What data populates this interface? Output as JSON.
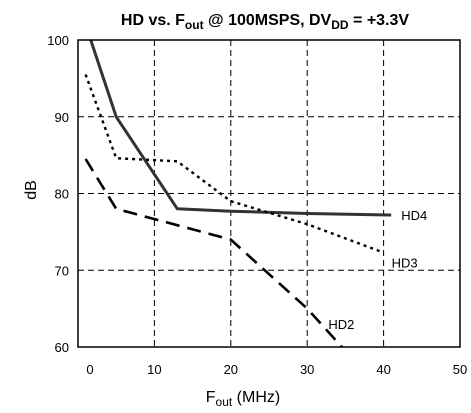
{
  "chart_data": {
    "type": "line",
    "title": {
      "prefix": "HD vs. F",
      "prefix_sub": "out",
      "middle": " @ 100MSPS, DV",
      "middle_sub": "DD",
      "suffix": " = +3.3V"
    },
    "xlabel": {
      "main": "F",
      "sub": "out",
      "rest": " (MHz)"
    },
    "ylabel": "dB",
    "xlim": [
      0,
      50
    ],
    "ylim": [
      60,
      100
    ],
    "x_ticks": [
      0,
      10,
      20,
      30,
      40,
      50
    ],
    "y_ticks": [
      60,
      70,
      80,
      90,
      100
    ],
    "grid": true,
    "series": [
      {
        "name": "HD4",
        "style": "solid",
        "color": "#333333",
        "points": [
          [
            1.5,
            100.5
          ],
          [
            5,
            90
          ],
          [
            13,
            78
          ],
          [
            20,
            77.7
          ],
          [
            30,
            77.4
          ],
          [
            41,
            77.2
          ]
        ]
      },
      {
        "name": "HD3",
        "style": "dotted",
        "color": "#000000",
        "points": [
          [
            1,
            95.5
          ],
          [
            5,
            84.6
          ],
          [
            13,
            84.2
          ],
          [
            20,
            79
          ],
          [
            30,
            76
          ],
          [
            40,
            72.3
          ]
        ]
      },
      {
        "name": "HD2",
        "style": "dashed",
        "color": "#000000",
        "points": [
          [
            1,
            84.5
          ],
          [
            5,
            78
          ],
          [
            20,
            74
          ],
          [
            30,
            65
          ],
          [
            35,
            59.5
          ]
        ]
      }
    ]
  }
}
